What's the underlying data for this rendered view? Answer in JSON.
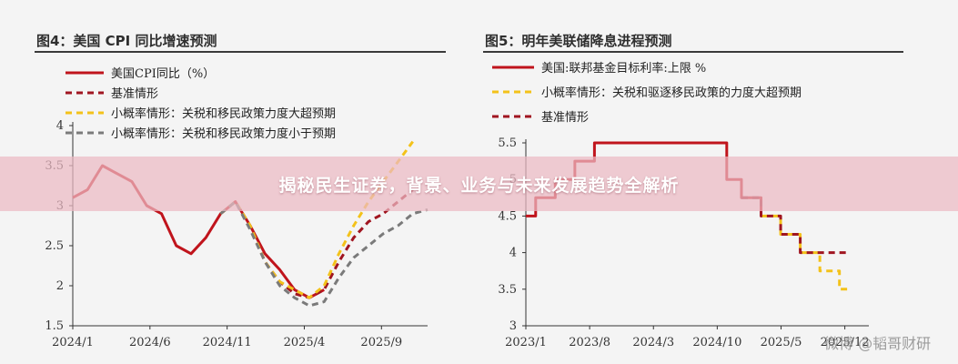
{
  "banner": {
    "text": "揭秘民生证券，背景、业务与未来发展趋势全解析"
  },
  "watermark": {
    "text": "微博 @韬哥财研"
  },
  "chart_data": [
    {
      "type": "line",
      "title": "图4：美国 CPI 同比增速预测",
      "xlabel": "",
      "ylabel": "",
      "x_ticks": [
        "2024/1",
        "2024/6",
        "2024/11",
        "2025/4",
        "2025/9"
      ],
      "x_range": [
        0,
        24
      ],
      "y_ticks": [
        "1.5",
        "2",
        "2.5",
        "3",
        "3.5",
        "4"
      ],
      "ylim": [
        1.5,
        4
      ],
      "series": [
        {
          "name": "美国CPI同比（%）",
          "color": "#c0141c",
          "dash": "solid",
          "points": [
            [
              0,
              3.1
            ],
            [
              1,
              3.2
            ],
            [
              2,
              3.5
            ],
            [
              3,
              3.4
            ],
            [
              4,
              3.3
            ],
            [
              5,
              3.0
            ],
            [
              6,
              2.9
            ],
            [
              7,
              2.5
            ],
            [
              8,
              2.4
            ],
            [
              9,
              2.6
            ],
            [
              10,
              2.9
            ],
            [
              11,
              3.05
            ],
            [
              12,
              2.75
            ],
            [
              13,
              2.4
            ],
            [
              14,
              2.2
            ],
            [
              15,
              1.95
            ],
            [
              16,
              1.85
            ],
            [
              17,
              1.95
            ]
          ]
        },
        {
          "name": "基准情形",
          "color": "#a01520",
          "dash": "dashed",
          "points": [
            [
              10,
              2.9
            ],
            [
              11,
              3.05
            ],
            [
              12,
              2.75
            ],
            [
              13,
              2.3
            ],
            [
              14,
              2.05
            ],
            [
              15,
              1.9
            ],
            [
              16,
              1.85
            ],
            [
              17,
              1.95
            ],
            [
              18,
              2.3
            ],
            [
              19,
              2.6
            ],
            [
              20,
              2.8
            ],
            [
              21,
              2.9
            ],
            [
              22,
              3.05
            ],
            [
              23,
              3.2
            ]
          ]
        },
        {
          "name": "小概率情形：关税和移民政策力度大超预期",
          "color": "#f3c21a",
          "dash": "dashed",
          "points": [
            [
              10,
              2.9
            ],
            [
              11,
              3.05
            ],
            [
              12,
              2.75
            ],
            [
              13,
              2.3
            ],
            [
              14,
              2.05
            ],
            [
              15,
              1.95
            ],
            [
              16,
              1.85
            ],
            [
              17,
              2.0
            ],
            [
              18,
              2.4
            ],
            [
              19,
              2.75
            ],
            [
              20,
              3.05
            ],
            [
              21,
              3.3
            ],
            [
              22,
              3.55
            ],
            [
              23,
              3.8
            ]
          ]
        },
        {
          "name": "小概率情形：关税和移民政策力度小于预期",
          "color": "#7a7a7a",
          "dash": "dashed",
          "points": [
            [
              10,
              2.9
            ],
            [
              11,
              3.05
            ],
            [
              12,
              2.7
            ],
            [
              13,
              2.3
            ],
            [
              14,
              2.0
            ],
            [
              15,
              1.85
            ],
            [
              16,
              1.75
            ],
            [
              17,
              1.8
            ],
            [
              18,
              2.1
            ],
            [
              19,
              2.35
            ],
            [
              20,
              2.5
            ],
            [
              21,
              2.65
            ],
            [
              22,
              2.75
            ],
            [
              23,
              2.9
            ],
            [
              24,
              2.95
            ]
          ]
        }
      ]
    },
    {
      "type": "line",
      "title": "图5：明年美联储降息进程预测",
      "xlabel": "",
      "ylabel": "",
      "x_ticks": [
        "2023/1",
        "2023/8",
        "2024/3",
        "2024/10",
        "2025/5",
        "2025/12"
      ],
      "x_range": [
        0,
        35
      ],
      "y_ticks": [
        "3",
        "3.5",
        "4",
        "4.5",
        "5",
        "5.5"
      ],
      "ylim": [
        3,
        5.5
      ],
      "series": [
        {
          "name": "美国:联邦基金目标利率:上限 %",
          "color": "#c0141c",
          "dash": "solid",
          "step": true,
          "points": [
            [
              0,
              4.5
            ],
            [
              1,
              4.75
            ],
            [
              3,
              5.0
            ],
            [
              5,
              5.25
            ],
            [
              7,
              5.5
            ],
            [
              20,
              5.5
            ],
            [
              20.5,
              5.0
            ],
            [
              22,
              4.75
            ],
            [
              24,
              4.5
            ]
          ]
        },
        {
          "name": "小概率情形：关税和驱逐移民政策的力度大超预期",
          "color": "#f3c21a",
          "dash": "dashed",
          "step": true,
          "points": [
            [
              24,
              4.5
            ],
            [
              26,
              4.25
            ],
            [
              28,
              4.0
            ],
            [
              30,
              3.75
            ],
            [
              32,
              3.5
            ],
            [
              33,
              3.5
            ]
          ]
        },
        {
          "name": "基准情形",
          "color": "#a01520",
          "dash": "dashed",
          "step": true,
          "points": [
            [
              22,
              4.75
            ],
            [
              24,
              4.5
            ],
            [
              26,
              4.25
            ],
            [
              28,
              4.0
            ],
            [
              33,
              4.0
            ]
          ]
        }
      ]
    }
  ]
}
